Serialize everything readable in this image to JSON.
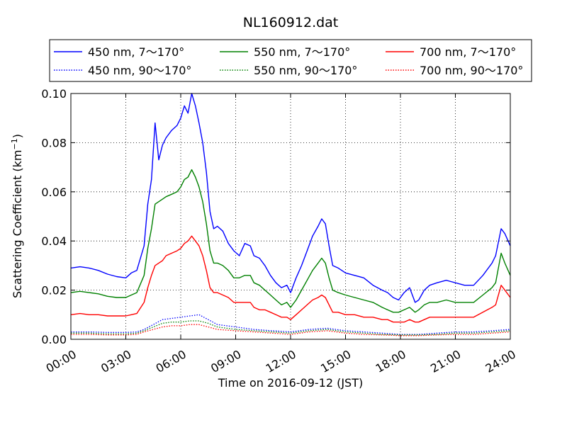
{
  "chart_data": {
    "type": "line",
    "title": "NL160912.dat",
    "xlabel": "Time on 2016-09-12 (JST)",
    "ylabel": "Scattering Coefficient (km",
    "ylabel_sup": "−1",
    "ylabel_close": ")",
    "xlim": [
      0,
      24
    ],
    "ylim": [
      0.0,
      0.1
    ],
    "x_ticks": [
      {
        "value": 0,
        "label": "00:00"
      },
      {
        "value": 3,
        "label": "03:00"
      },
      {
        "value": 6,
        "label": "06:00"
      },
      {
        "value": 9,
        "label": "09:00"
      },
      {
        "value": 12,
        "label": "12:00"
      },
      {
        "value": 15,
        "label": "15:00"
      },
      {
        "value": 18,
        "label": "18:00"
      },
      {
        "value": 21,
        "label": "21:00"
      },
      {
        "value": 24,
        "label": "24:00"
      }
    ],
    "y_ticks": [
      {
        "value": 0.0,
        "label": "0.00"
      },
      {
        "value": 0.02,
        "label": "0.02"
      },
      {
        "value": 0.04,
        "label": "0.04"
      },
      {
        "value": 0.06,
        "label": "0.06"
      },
      {
        "value": 0.08,
        "label": "0.08"
      },
      {
        "value": 0.1,
        "label": "0.10"
      }
    ],
    "grid": true,
    "legend_position": "top, above plot",
    "series": [
      {
        "name": "450 nm, 7～170°",
        "color": "#0000ff",
        "style": "solid",
        "x": [
          0,
          0.5,
          1,
          1.5,
          2,
          2.5,
          3,
          3.3,
          3.6,
          4,
          4.2,
          4.4,
          4.6,
          4.8,
          5,
          5.2,
          5.5,
          5.8,
          6,
          6.2,
          6.4,
          6.6,
          6.8,
          7,
          7.2,
          7.4,
          7.6,
          7.8,
          8,
          8.3,
          8.6,
          8.9,
          9.2,
          9.5,
          9.8,
          10,
          10.3,
          10.6,
          10.9,
          11.2,
          11.5,
          11.8,
          12,
          12.3,
          12.6,
          12.9,
          13.2,
          13.5,
          13.7,
          13.9,
          14.1,
          14.3,
          14.6,
          15,
          15.5,
          16,
          16.5,
          17,
          17.3,
          17.6,
          17.9,
          18.2,
          18.5,
          18.8,
          19,
          19.3,
          19.6,
          20,
          20.5,
          21,
          21.5,
          22,
          22.5,
          23,
          23.2,
          23.5,
          23.7,
          24
        ],
        "y": [
          0.029,
          0.0295,
          0.029,
          0.028,
          0.0265,
          0.0255,
          0.025,
          0.027,
          0.028,
          0.038,
          0.055,
          0.065,
          0.088,
          0.073,
          0.079,
          0.082,
          0.085,
          0.087,
          0.09,
          0.095,
          0.092,
          0.1,
          0.095,
          0.088,
          0.08,
          0.068,
          0.052,
          0.045,
          0.046,
          0.044,
          0.039,
          0.036,
          0.034,
          0.039,
          0.038,
          0.034,
          0.033,
          0.03,
          0.026,
          0.023,
          0.021,
          0.022,
          0.019,
          0.025,
          0.03,
          0.036,
          0.042,
          0.046,
          0.049,
          0.047,
          0.038,
          0.03,
          0.029,
          0.027,
          0.026,
          0.025,
          0.022,
          0.02,
          0.019,
          0.017,
          0.016,
          0.019,
          0.021,
          0.015,
          0.016,
          0.02,
          0.022,
          0.023,
          0.024,
          0.023,
          0.022,
          0.022,
          0.026,
          0.031,
          0.034,
          0.045,
          0.043,
          0.038
        ]
      },
      {
        "name": "550 nm, 7～170°",
        "color": "#008000",
        "style": "solid",
        "x": [
          0,
          0.5,
          1,
          1.5,
          2,
          2.5,
          3,
          3.3,
          3.6,
          4,
          4.2,
          4.4,
          4.6,
          4.8,
          5,
          5.2,
          5.5,
          5.8,
          6,
          6.2,
          6.4,
          6.6,
          6.8,
          7,
          7.2,
          7.4,
          7.6,
          7.8,
          8,
          8.3,
          8.6,
          8.9,
          9.2,
          9.5,
          9.8,
          10,
          10.3,
          10.6,
          10.9,
          11.2,
          11.5,
          11.8,
          12,
          12.3,
          12.6,
          12.9,
          13.2,
          13.5,
          13.7,
          13.9,
          14.1,
          14.3,
          14.6,
          15,
          15.5,
          16,
          16.5,
          17,
          17.3,
          17.6,
          17.9,
          18.2,
          18.5,
          18.8,
          19,
          19.3,
          19.6,
          20,
          20.5,
          21,
          21.5,
          22,
          22.5,
          23,
          23.2,
          23.5,
          23.7,
          24
        ],
        "y": [
          0.019,
          0.0195,
          0.019,
          0.0185,
          0.0175,
          0.017,
          0.017,
          0.018,
          0.019,
          0.026,
          0.037,
          0.045,
          0.055,
          0.056,
          0.057,
          0.058,
          0.059,
          0.06,
          0.062,
          0.065,
          0.066,
          0.069,
          0.066,
          0.062,
          0.056,
          0.047,
          0.036,
          0.031,
          0.031,
          0.03,
          0.028,
          0.025,
          0.025,
          0.026,
          0.026,
          0.023,
          0.022,
          0.02,
          0.018,
          0.016,
          0.014,
          0.015,
          0.013,
          0.016,
          0.02,
          0.024,
          0.028,
          0.031,
          0.033,
          0.031,
          0.025,
          0.02,
          0.019,
          0.018,
          0.017,
          0.016,
          0.015,
          0.013,
          0.012,
          0.011,
          0.011,
          0.012,
          0.013,
          0.011,
          0.012,
          0.014,
          0.015,
          0.015,
          0.016,
          0.015,
          0.015,
          0.015,
          0.018,
          0.021,
          0.023,
          0.035,
          0.031,
          0.026
        ]
      },
      {
        "name": "700 nm, 7～170°",
        "color": "#ff0000",
        "style": "solid",
        "x": [
          0,
          0.5,
          1,
          1.5,
          2,
          2.5,
          3,
          3.3,
          3.6,
          4,
          4.2,
          4.4,
          4.6,
          4.8,
          5,
          5.2,
          5.5,
          5.8,
          6,
          6.2,
          6.4,
          6.6,
          6.8,
          7,
          7.2,
          7.4,
          7.6,
          7.8,
          8,
          8.3,
          8.6,
          8.9,
          9.2,
          9.5,
          9.8,
          10,
          10.3,
          10.6,
          10.9,
          11.2,
          11.5,
          11.8,
          12,
          12.3,
          12.6,
          12.9,
          13.2,
          13.5,
          13.7,
          13.9,
          14.1,
          14.3,
          14.6,
          15,
          15.5,
          16,
          16.5,
          17,
          17.3,
          17.6,
          17.9,
          18.2,
          18.5,
          18.8,
          19,
          19.3,
          19.6,
          20,
          20.5,
          21,
          21.5,
          22,
          22.5,
          23,
          23.2,
          23.5,
          23.7,
          24
        ],
        "y": [
          0.01,
          0.0105,
          0.01,
          0.01,
          0.0095,
          0.0095,
          0.0095,
          0.01,
          0.0105,
          0.015,
          0.021,
          0.026,
          0.03,
          0.031,
          0.032,
          0.034,
          0.035,
          0.036,
          0.037,
          0.039,
          0.04,
          0.042,
          0.04,
          0.038,
          0.034,
          0.028,
          0.021,
          0.019,
          0.019,
          0.018,
          0.017,
          0.015,
          0.015,
          0.015,
          0.015,
          0.013,
          0.012,
          0.012,
          0.011,
          0.01,
          0.009,
          0.009,
          0.008,
          0.01,
          0.012,
          0.014,
          0.016,
          0.017,
          0.018,
          0.017,
          0.014,
          0.011,
          0.011,
          0.01,
          0.01,
          0.009,
          0.009,
          0.008,
          0.008,
          0.007,
          0.007,
          0.007,
          0.008,
          0.007,
          0.007,
          0.008,
          0.009,
          0.009,
          0.009,
          0.009,
          0.009,
          0.009,
          0.011,
          0.013,
          0.014,
          0.022,
          0.02,
          0.017
        ]
      },
      {
        "name": "450 nm, 90～170°",
        "color": "#0000ff",
        "style": "dotted",
        "x": [
          0,
          1,
          2,
          3,
          3.6,
          4,
          4.5,
          5,
          5.5,
          6,
          6.5,
          7,
          7.5,
          8,
          9,
          10,
          11,
          12,
          13,
          14,
          15,
          16,
          17,
          18,
          19,
          20,
          21,
          22,
          23,
          24
        ],
        "y": [
          0.003,
          0.003,
          0.0028,
          0.0028,
          0.003,
          0.004,
          0.006,
          0.008,
          0.0085,
          0.009,
          0.0095,
          0.01,
          0.008,
          0.006,
          0.005,
          0.004,
          0.0035,
          0.003,
          0.004,
          0.0045,
          0.0035,
          0.003,
          0.0025,
          0.002,
          0.002,
          0.0025,
          0.003,
          0.003,
          0.0035,
          0.004
        ]
      },
      {
        "name": "550 nm, 90～170°",
        "color": "#008000",
        "style": "dotted",
        "x": [
          0,
          1,
          2,
          3,
          3.6,
          4,
          4.5,
          5,
          5.5,
          6,
          6.5,
          7,
          7.5,
          8,
          9,
          10,
          11,
          12,
          13,
          14,
          15,
          16,
          17,
          18,
          19,
          20,
          21,
          22,
          23,
          24
        ],
        "y": [
          0.0025,
          0.0025,
          0.0022,
          0.0022,
          0.0025,
          0.0035,
          0.005,
          0.0065,
          0.007,
          0.007,
          0.0075,
          0.0075,
          0.0065,
          0.005,
          0.004,
          0.0035,
          0.003,
          0.0025,
          0.0035,
          0.004,
          0.003,
          0.0025,
          0.002,
          0.0018,
          0.0018,
          0.002,
          0.0025,
          0.0025,
          0.003,
          0.0035
        ]
      },
      {
        "name": "700 nm, 90～170°",
        "color": "#ff0000",
        "style": "dotted",
        "x": [
          0,
          1,
          2,
          3,
          3.6,
          4,
          4.5,
          5,
          5.5,
          6,
          6.5,
          7,
          7.5,
          8,
          9,
          10,
          11,
          12,
          13,
          14,
          15,
          16,
          17,
          18,
          19,
          20,
          21,
          22,
          23,
          24
        ],
        "y": [
          0.002,
          0.002,
          0.0018,
          0.0018,
          0.002,
          0.003,
          0.004,
          0.005,
          0.0055,
          0.0055,
          0.006,
          0.006,
          0.005,
          0.004,
          0.0035,
          0.003,
          0.0025,
          0.002,
          0.003,
          0.0035,
          0.0025,
          0.002,
          0.0018,
          0.0015,
          0.0015,
          0.0018,
          0.002,
          0.002,
          0.0025,
          0.003
        ]
      }
    ],
    "legend": [
      {
        "label": "450 nm, 7～170°",
        "color": "#0000ff",
        "style": "solid"
      },
      {
        "label": "550 nm, 7～170°",
        "color": "#008000",
        "style": "solid"
      },
      {
        "label": "700 nm, 7～170°",
        "color": "#ff0000",
        "style": "solid"
      },
      {
        "label": "450 nm, 90～170°",
        "color": "#0000ff",
        "style": "dotted"
      },
      {
        "label": "550 nm, 90～170°",
        "color": "#008000",
        "style": "dotted"
      },
      {
        "label": "700 nm, 90～170°",
        "color": "#ff0000",
        "style": "dotted"
      }
    ]
  }
}
